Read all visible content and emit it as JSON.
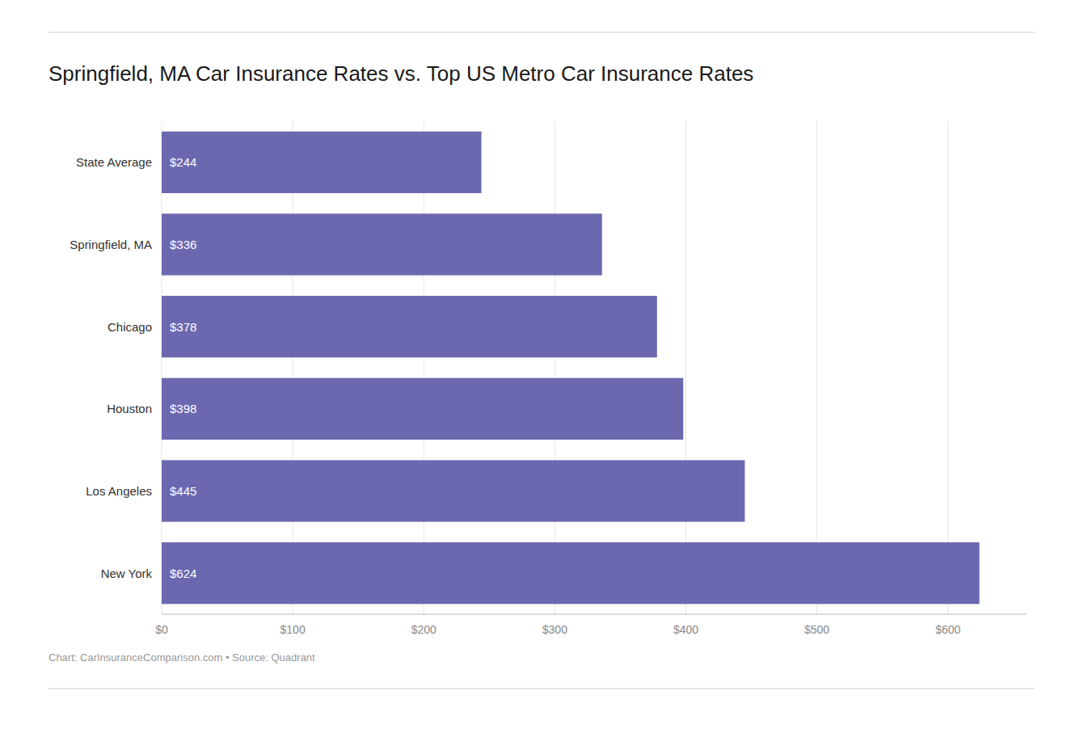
{
  "chart_data": {
    "type": "bar",
    "orientation": "horizontal",
    "title": "Springfield, MA Car Insurance Rates vs. Top US Metro Car Insurance Rates",
    "caption": "Chart: CarInsuranceComparison.com • Source: Quadrant",
    "categories": [
      "State Average",
      "Springfield, MA",
      "Chicago",
      "Houston",
      "Los Angeles",
      "New York"
    ],
    "values": [
      244,
      336,
      378,
      398,
      445,
      624
    ],
    "value_labels": [
      "$244",
      "$336",
      "$378",
      "$398",
      "$445",
      "$624"
    ],
    "data_labels": true,
    "color": "#6b68b0",
    "xlim": [
      0,
      660
    ],
    "xticks": [
      {
        "value": 0,
        "label": "$0"
      },
      {
        "value": 100,
        "label": "$100"
      },
      {
        "value": 200,
        "label": "$200"
      },
      {
        "value": 300,
        "label": "$300"
      },
      {
        "value": 400,
        "label": "$400"
      },
      {
        "value": 500,
        "label": "$500"
      },
      {
        "value": 600,
        "label": "$600"
      }
    ],
    "grid": true
  }
}
